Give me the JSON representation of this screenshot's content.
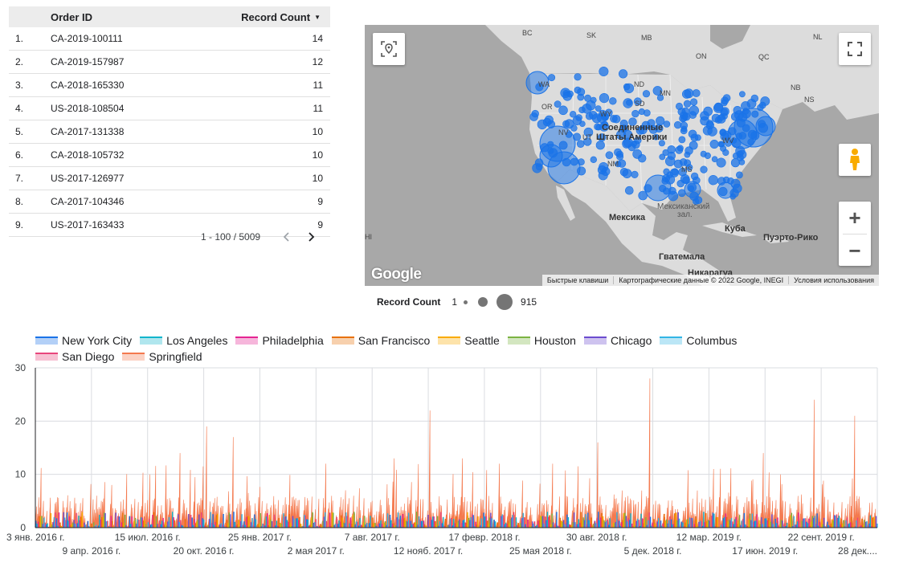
{
  "table": {
    "headers": {
      "order_id": "Order ID",
      "record_count": "Record Count"
    },
    "sort_icon": "caret-down-icon",
    "rows": [
      {
        "idx": "1.",
        "order_id": "CA-2019-100111",
        "count": "14"
      },
      {
        "idx": "2.",
        "order_id": "CA-2019-157987",
        "count": "12"
      },
      {
        "idx": "3.",
        "order_id": "CA-2018-165330",
        "count": "11"
      },
      {
        "idx": "4.",
        "order_id": "US-2018-108504",
        "count": "11"
      },
      {
        "idx": "5.",
        "order_id": "CA-2017-131338",
        "count": "10"
      },
      {
        "idx": "6.",
        "order_id": "CA-2018-105732",
        "count": "10"
      },
      {
        "idx": "7.",
        "order_id": "US-2017-126977",
        "count": "10"
      },
      {
        "idx": "8.",
        "order_id": "CA-2017-104346",
        "count": "9"
      },
      {
        "idx": "9.",
        "order_id": "US-2017-163433",
        "count": "9"
      }
    ],
    "pagination": {
      "range": "1 - 100 / 5009",
      "prev_icon": "chevron-left-icon",
      "next_icon": "chevron-right-icon"
    }
  },
  "map": {
    "labels": {
      "bc": "BC",
      "sk": "SK",
      "mb": "MB",
      "nl": "NL",
      "on": "ON",
      "qc": "QC",
      "nd": "ND",
      "mn": "MN",
      "wa": "WA",
      "or": "OR",
      "sd": "SD",
      "wy": "WY",
      "nv": "NV",
      "ut": "UT",
      "nm": "NM",
      "ms": "MS",
      "nb": "NB",
      "ns": "NS",
      "wv": "WV",
      "usa_line1": "Соединенные",
      "usa_line2": "Штаты Америки",
      "mexico": "Мексика",
      "gulf_line1": "Мексиканский",
      "gulf_line2": "зал.",
      "cuba": "Куба",
      "puerto_rico": "Пуэрто-Рико",
      "guatemala": "Гватемала",
      "nicaragua": "Никарагуа",
      "hi": "HI"
    },
    "attribution": {
      "shortcuts": "Быстрые клавиши",
      "data": "Картографические данные © 2022 Google, INEGI",
      "terms": "Условия использования"
    },
    "logo": "Google",
    "icons": {
      "locate": "locate-icon",
      "fullscreen": "fullscreen-icon",
      "pegman": "pegman-icon",
      "zoom_in": "plus-icon",
      "zoom_out": "minus-icon"
    },
    "bubble_color": "#1a73e8",
    "land_color": "#dcdcdc",
    "water_color": "#a8a8a8"
  },
  "bubble_legend": {
    "title": "Record Count",
    "min": "1",
    "max": "915"
  },
  "chart_data": {
    "type": "area",
    "stacked": true,
    "ylim": [
      0,
      30
    ],
    "yticks": [
      "0",
      "10",
      "20",
      "30"
    ],
    "grid": true,
    "legend_position": "top",
    "x_range": [
      "2016-01-03",
      "2019-12-28"
    ],
    "xticks_row1": [
      "3 янв. 2016 г.",
      "15 июл. 2016 г.",
      "25 янв. 2017 г.",
      "7 авг. 2017 г.",
      "17 февр. 2018 г.",
      "30 авг. 2018 г.",
      "12 мар. 2019 г.",
      "22 сент. 2019 г."
    ],
    "xticks_row2": [
      "9 апр. 2016 г.",
      "20 окт. 2016 г.",
      "2 мая 2017 г.",
      "12 нояб. 2017 г.",
      "25 мая 2018 г.",
      "5 дек. 2018 г.",
      "17 июн. 2019 г.",
      "28 дек...."
    ],
    "series": [
      {
        "name": "New York City",
        "color": "#1a73e8"
      },
      {
        "name": "Los Angeles",
        "color": "#12b5cb"
      },
      {
        "name": "Philadelphia",
        "color": "#e52592"
      },
      {
        "name": "San Francisco",
        "color": "#e8710a"
      },
      {
        "name": "Seattle",
        "color": "#f9ab00"
      },
      {
        "name": "Houston",
        "color": "#7cb342"
      },
      {
        "name": "Chicago",
        "color": "#6c4ccf"
      },
      {
        "name": "Columbus",
        "color": "#33b5e5"
      },
      {
        "name": "San Diego",
        "color": "#e8467c"
      },
      {
        "name": "Springfield",
        "color": "#f4794e"
      }
    ],
    "peaks": [
      {
        "date": "2016-02-20",
        "value": 5
      },
      {
        "date": "2016-05-15",
        "value": 8
      },
      {
        "date": "2016-07-20",
        "value": 10
      },
      {
        "date": "2016-09-10",
        "value": 14
      },
      {
        "date": "2016-10-25",
        "value": 19
      },
      {
        "date": "2016-12-10",
        "value": 17
      },
      {
        "date": "2017-05-20",
        "value": 12
      },
      {
        "date": "2017-09-15",
        "value": 13
      },
      {
        "date": "2017-11-15",
        "value": 22
      },
      {
        "date": "2018-01-10",
        "value": 13
      },
      {
        "date": "2018-03-15",
        "value": 12
      },
      {
        "date": "2018-06-15",
        "value": 12
      },
      {
        "date": "2018-09-01",
        "value": 16
      },
      {
        "date": "2018-12-01",
        "value": 28
      },
      {
        "date": "2019-03-20",
        "value": 11
      },
      {
        "date": "2019-06-15",
        "value": 14
      },
      {
        "date": "2019-09-10",
        "value": 24
      },
      {
        "date": "2019-11-20",
        "value": 21
      }
    ]
  }
}
